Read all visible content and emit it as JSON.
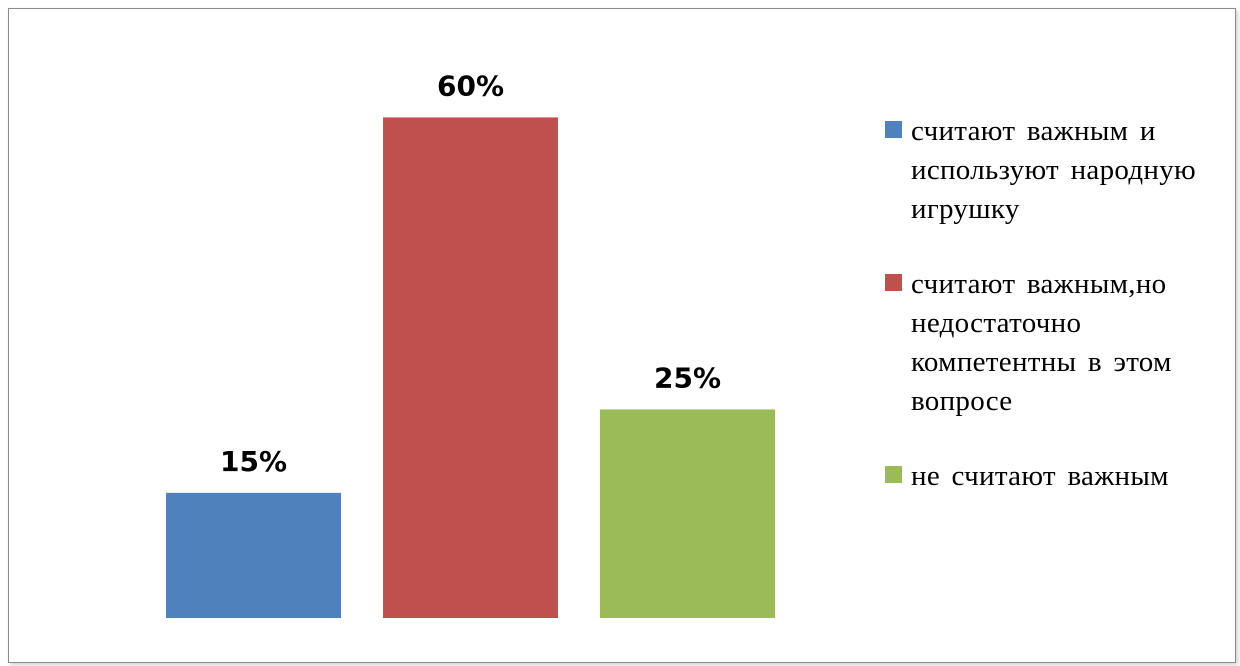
{
  "chart_data": {
    "type": "bar",
    "title": "",
    "xlabel": "",
    "ylabel": "",
    "ylim": [
      0,
      70
    ],
    "grid": false,
    "legend_position": "right",
    "unit": "%",
    "series": [
      {
        "name": "считают важным и используют народную игрушку",
        "value": 15,
        "label": "15%",
        "color": "#4f81bd"
      },
      {
        "name": "считают важным,но недостаточно компетентны в этом вопросе",
        "value": 60,
        "label": "60%",
        "color": "#c0504d"
      },
      {
        "name": "не считают важным",
        "value": 25,
        "label": "25%",
        "color": "#9bbb59"
      }
    ]
  },
  "legend": {
    "items": [
      {
        "text": "считают важным и используют народную игрушку",
        "color": "#4f81bd"
      },
      {
        "text": "считают важным,но недостаточно компетентны в этом вопросе",
        "color": "#c0504d"
      },
      {
        "text": "не считают важным",
        "color": "#9bbb59"
      }
    ]
  }
}
